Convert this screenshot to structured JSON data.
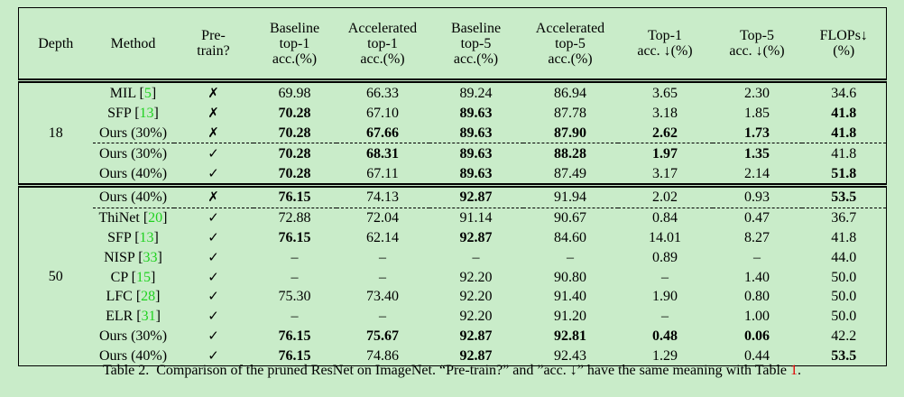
{
  "table": {
    "header": [
      [
        "Depth"
      ],
      [
        "Method"
      ],
      [
        "Pre-",
        "train?"
      ],
      [
        "Baseline",
        "top-1",
        "acc.(%)"
      ],
      [
        "Accelerated",
        "top-1",
        "acc.(%)"
      ],
      [
        "Baseline",
        "top-5",
        "acc.(%)"
      ],
      [
        "Accelerated",
        "top-5",
        "acc.(%)"
      ],
      [
        "Top-1",
        "acc. ↓(%)"
      ],
      [
        "Top-5",
        "acc. ↓(%)"
      ],
      [
        "FLOPs↓",
        "(%)"
      ]
    ],
    "groups": [
      {
        "depth": "18",
        "rows": [
          {
            "method": "MIL [5]",
            "pretrain": "✗",
            "cells": [
              "69.98",
              "66.33",
              "89.24",
              "86.94",
              "3.65",
              "2.30",
              "34.6"
            ]
          },
          {
            "method": "SFP [13]",
            "pretrain": "✗",
            "cells": [
              {
                "text": "70.28",
                "bold": true
              },
              "67.10",
              {
                "text": "89.63",
                "bold": true
              },
              "87.78",
              "3.18",
              "1.85",
              {
                "text": "41.8",
                "bold": true
              }
            ]
          },
          {
            "method": "Ours (30%)",
            "pretrain": "✗",
            "cells": [
              {
                "text": "70.28",
                "bold": true
              },
              {
                "text": "67.66",
                "bold": true
              },
              {
                "text": "89.63",
                "bold": true
              },
              {
                "text": "87.90",
                "bold": true
              },
              {
                "text": "2.62",
                "bold": true
              },
              {
                "text": "1.73",
                "bold": true
              },
              {
                "text": "41.8",
                "bold": true
              }
            ]
          },
          {
            "method": "Ours (30%)",
            "pretrain": "✓",
            "dashed": true,
            "cells": [
              {
                "text": "70.28",
                "bold": true
              },
              {
                "text": "68.31",
                "bold": true
              },
              {
                "text": "89.63",
                "bold": true
              },
              {
                "text": "88.28",
                "bold": true
              },
              {
                "text": "1.97",
                "bold": true
              },
              {
                "text": "1.35",
                "bold": true
              },
              "41.8"
            ]
          },
          {
            "method": "Ours (40%)",
            "pretrain": "✓",
            "cells": [
              {
                "text": "70.28",
                "bold": true
              },
              "67.11",
              {
                "text": "89.63",
                "bold": true
              },
              "87.49",
              "3.17",
              "2.14",
              {
                "text": "51.8",
                "bold": true
              }
            ]
          }
        ]
      },
      {
        "depth": "50",
        "rows": [
          {
            "method": "Ours (40%)",
            "pretrain": "✗",
            "cells": [
              {
                "text": "76.15",
                "bold": true
              },
              "74.13",
              {
                "text": "92.87",
                "bold": true
              },
              "91.94",
              "2.02",
              "0.93",
              {
                "text": "53.5",
                "bold": true
              }
            ]
          },
          {
            "method": "ThiNet [20]",
            "pretrain": "✓",
            "dashed": true,
            "cells": [
              "72.88",
              "72.04",
              "91.14",
              "90.67",
              "0.84",
              "0.47",
              "36.7"
            ]
          },
          {
            "method": "SFP [13]",
            "pretrain": "✓",
            "cells": [
              {
                "text": "76.15",
                "bold": true
              },
              "62.14",
              {
                "text": "92.87",
                "bold": true
              },
              "84.60",
              "14.01",
              "8.27",
              "41.8"
            ]
          },
          {
            "method": "NISP [33]",
            "pretrain": "✓",
            "cells": [
              "–",
              "–",
              "–",
              "–",
              "0.89",
              "–",
              "44.0"
            ]
          },
          {
            "method": "CP [15]",
            "pretrain": "✓",
            "cells": [
              "–",
              "–",
              "92.20",
              "90.80",
              "–",
              "1.40",
              "50.0"
            ]
          },
          {
            "method": "LFC [28]",
            "pretrain": "✓",
            "cells": [
              "75.30",
              "73.40",
              "92.20",
              "91.40",
              "1.90",
              "0.80",
              "50.0"
            ]
          },
          {
            "method": "ELR [31]",
            "pretrain": "✓",
            "cells": [
              "–",
              "–",
              "92.20",
              "91.20",
              "–",
              "1.00",
              "50.0"
            ]
          },
          {
            "method": "Ours (30%)",
            "pretrain": "✓",
            "cells": [
              {
                "text": "76.15",
                "bold": true
              },
              {
                "text": "75.67",
                "bold": true
              },
              {
                "text": "92.87",
                "bold": true
              },
              {
                "text": "92.81",
                "bold": true
              },
              {
                "text": "0.48",
                "bold": true
              },
              {
                "text": "0.06",
                "bold": true
              },
              "42.2"
            ]
          },
          {
            "method": "Ours (40%)",
            "pretrain": "✓",
            "cells": [
              {
                "text": "76.15",
                "bold": true
              },
              "74.86",
              {
                "text": "92.87",
                "bold": true
              },
              "92.43",
              "1.29",
              "0.44",
              {
                "text": "53.5",
                "bold": true
              }
            ]
          }
        ]
      }
    ]
  },
  "caption": "Table 2.  Comparison of the pruned ResNet on ImageNet. “Pre-train?” and ”acc. ↓” have the same meaning with Table 1."
}
